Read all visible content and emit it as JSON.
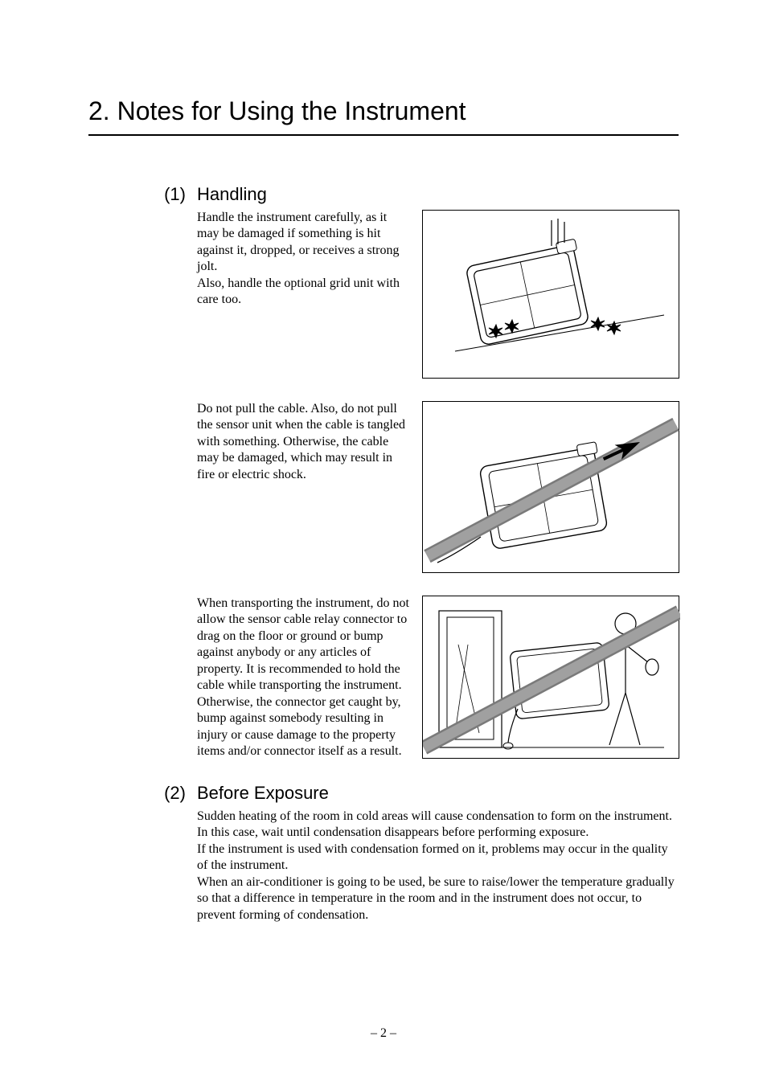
{
  "chapter": {
    "number": "2.",
    "title": "Notes for Using the Instrument"
  },
  "sections": [
    {
      "number": "(1)",
      "title": "Handling",
      "blocks": [
        {
          "text": "Handle the instrument carefully, as it may be damaged if something is hit against it, dropped, or receives a strong jolt.\nAlso, handle the optional grid unit with care too.",
          "has_figure": true,
          "figure_kind": "drop",
          "figure_height": 210
        },
        {
          "text": "Do not pull the cable. Also, do not pull the sensor unit when the cable is tangled with something. Otherwise, the cable may be damaged, which may result in fire or electric shock.",
          "has_figure": true,
          "figure_kind": "pull",
          "figure_height": 214
        },
        {
          "text": "When transporting the instrument, do not allow the sensor cable relay connector to drag on the floor or ground or bump against anybody or any articles of property. It is recommended to hold the cable while transporting the instrument.\nOtherwise, the connector get caught by, bump against somebody resulting in injury or cause damage to the property items and/or connector itself as a result.",
          "has_figure": true,
          "figure_kind": "carry",
          "figure_height": 203
        }
      ]
    },
    {
      "number": "(2)",
      "title": "Before Exposure",
      "blocks": [
        {
          "text": "Sudden heating of the room in cold areas will cause condensation to form on the instrument. In this case, wait until condensation disappears before performing exposure.\nIf the instrument is used with condensation formed on it, problems may occur in the quality of the instrument.\nWhen an air-conditioner is going to be used, be sure to raise/lower the temperature gradually so that a difference in temperature in the room and in the instrument does not occur, to prevent forming of condensation.",
          "has_figure": false
        }
      ]
    }
  ],
  "page_number": "– 2 –",
  "colors": {
    "text": "#000000",
    "background": "#ffffff",
    "figure_grey": "#a0a0a0",
    "figure_light": "#f0f0f0"
  },
  "fonts": {
    "heading_family": "Helvetica, Arial, sans-serif",
    "body_family": "Times New Roman, Times, serif",
    "chapter_size_pt": 24,
    "section_size_pt": 16,
    "body_size_pt": 12
  }
}
